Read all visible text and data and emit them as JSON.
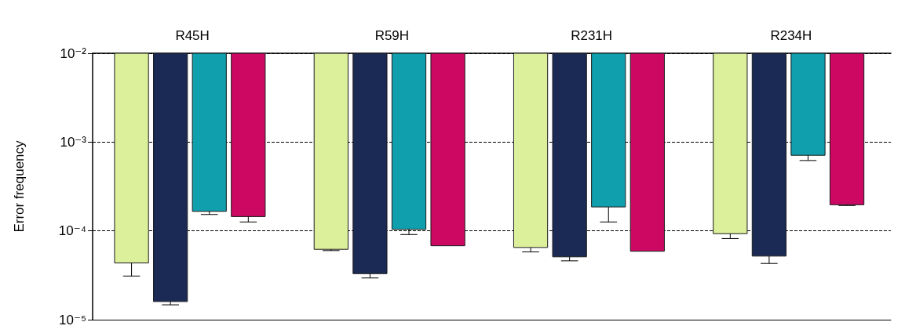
{
  "chart_data": {
    "type": "bar",
    "ylabel": "Error frequency",
    "categories": [
      "R45H",
      "R59H",
      "R231H",
      "R234H"
    ],
    "log": true,
    "ylim": [
      1e-05,
      0.01
    ],
    "yticks": [
      {
        "value": 1e-05,
        "label": "10⁻⁵"
      },
      {
        "value": 0.0001,
        "label": "10⁻⁴"
      },
      {
        "value": 0.001,
        "label": "10⁻³"
      },
      {
        "value": 0.01,
        "label": "10⁻²"
      }
    ],
    "grid": "y",
    "series": [
      {
        "color": "#dcf09c",
        "base": [
          0.01,
          0.01,
          0.01,
          0.01
        ],
        "values": [
          -0.0099565,
          -0.009938,
          -0.009935,
          -0.009907
        ],
        "errors": [
          [
            3.1e-05,
            4.35e-05
          ],
          [
            6e-05,
            6.2e-05
          ],
          [
            5.8e-05,
            6.5e-05
          ],
          [
            8.2e-05,
            9.3e-05
          ]
        ]
      },
      {
        "color": "#1a2a55",
        "base": [
          0.01,
          0.01,
          0.01,
          0.01
        ],
        "values": [
          -0.009984,
          -0.009967,
          -0.009949,
          -0.009948
        ],
        "errors": [
          [
            1.47e-05,
            1.6e-05
          ],
          [
            2.95e-05,
            3.3e-05
          ],
          [
            4.6e-05,
            5.1e-05
          ],
          [
            4.3e-05,
            5.2e-05
          ]
        ]
      },
      {
        "color": "#0f9fad",
        "base": [
          0.01,
          0.01,
          0.01,
          0.01
        ],
        "values": [
          -0.009834,
          -0.009896,
          -0.009814,
          -0.00929
        ],
        "errors": [
          [
            0.000153,
            0.000166
          ],
          [
            9.1e-05,
            0.000104
          ],
          [
            0.000126,
            0.000186
          ],
          [
            0.00062,
            0.00071
          ]
        ]
      },
      {
        "color": "#cc0863",
        "base": [
          0.01,
          0.01,
          0.01,
          0.01
        ],
        "values": [
          -0.009855,
          -0.009932,
          -0.009941,
          -0.009803
        ],
        "errors": [
          [
            0.000126,
            0.000145
          ],
          null,
          null,
          [
            0.000193,
            0.000197
          ]
        ]
      }
    ]
  }
}
